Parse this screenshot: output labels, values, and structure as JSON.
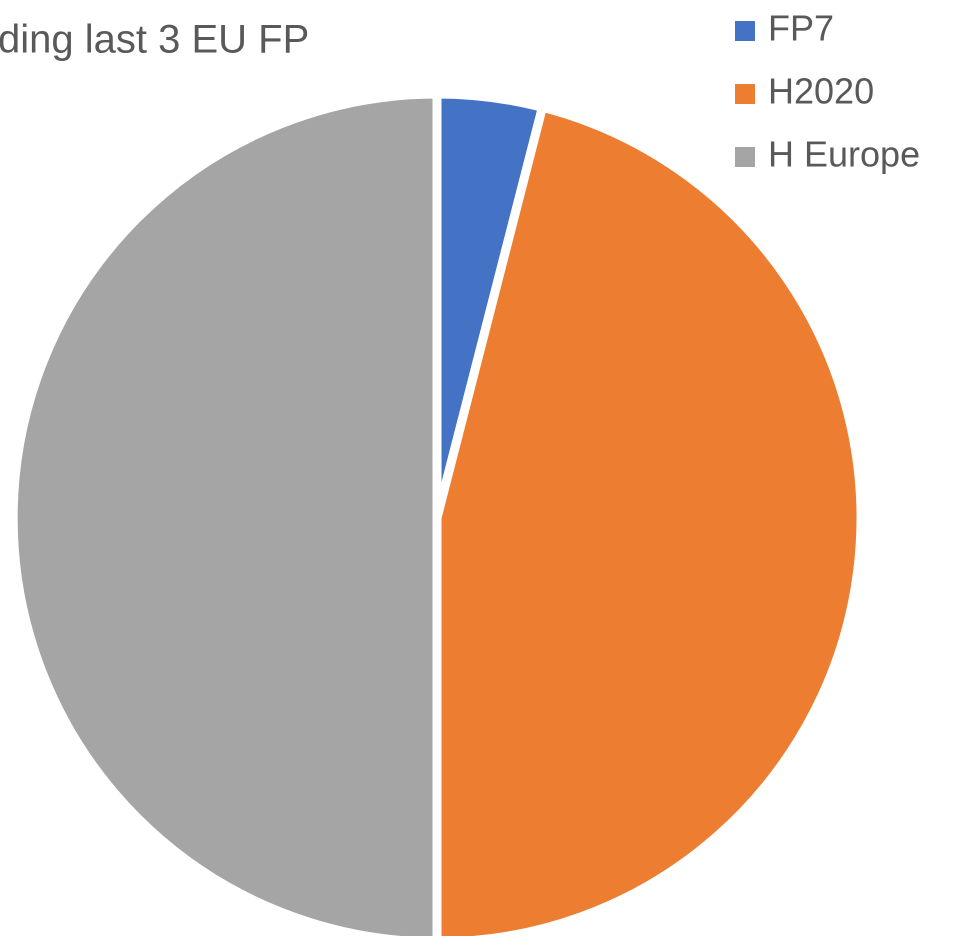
{
  "chart_data": {
    "type": "pie",
    "title": "ding last 3 EU FP",
    "categories": [
      "FP7",
      "H2020",
      "H Europe"
    ],
    "values": [
      4,
      46,
      50
    ],
    "colors": [
      "#4472c4",
      "#ed7d31",
      "#a5a5a5"
    ],
    "legend": "top-right"
  }
}
